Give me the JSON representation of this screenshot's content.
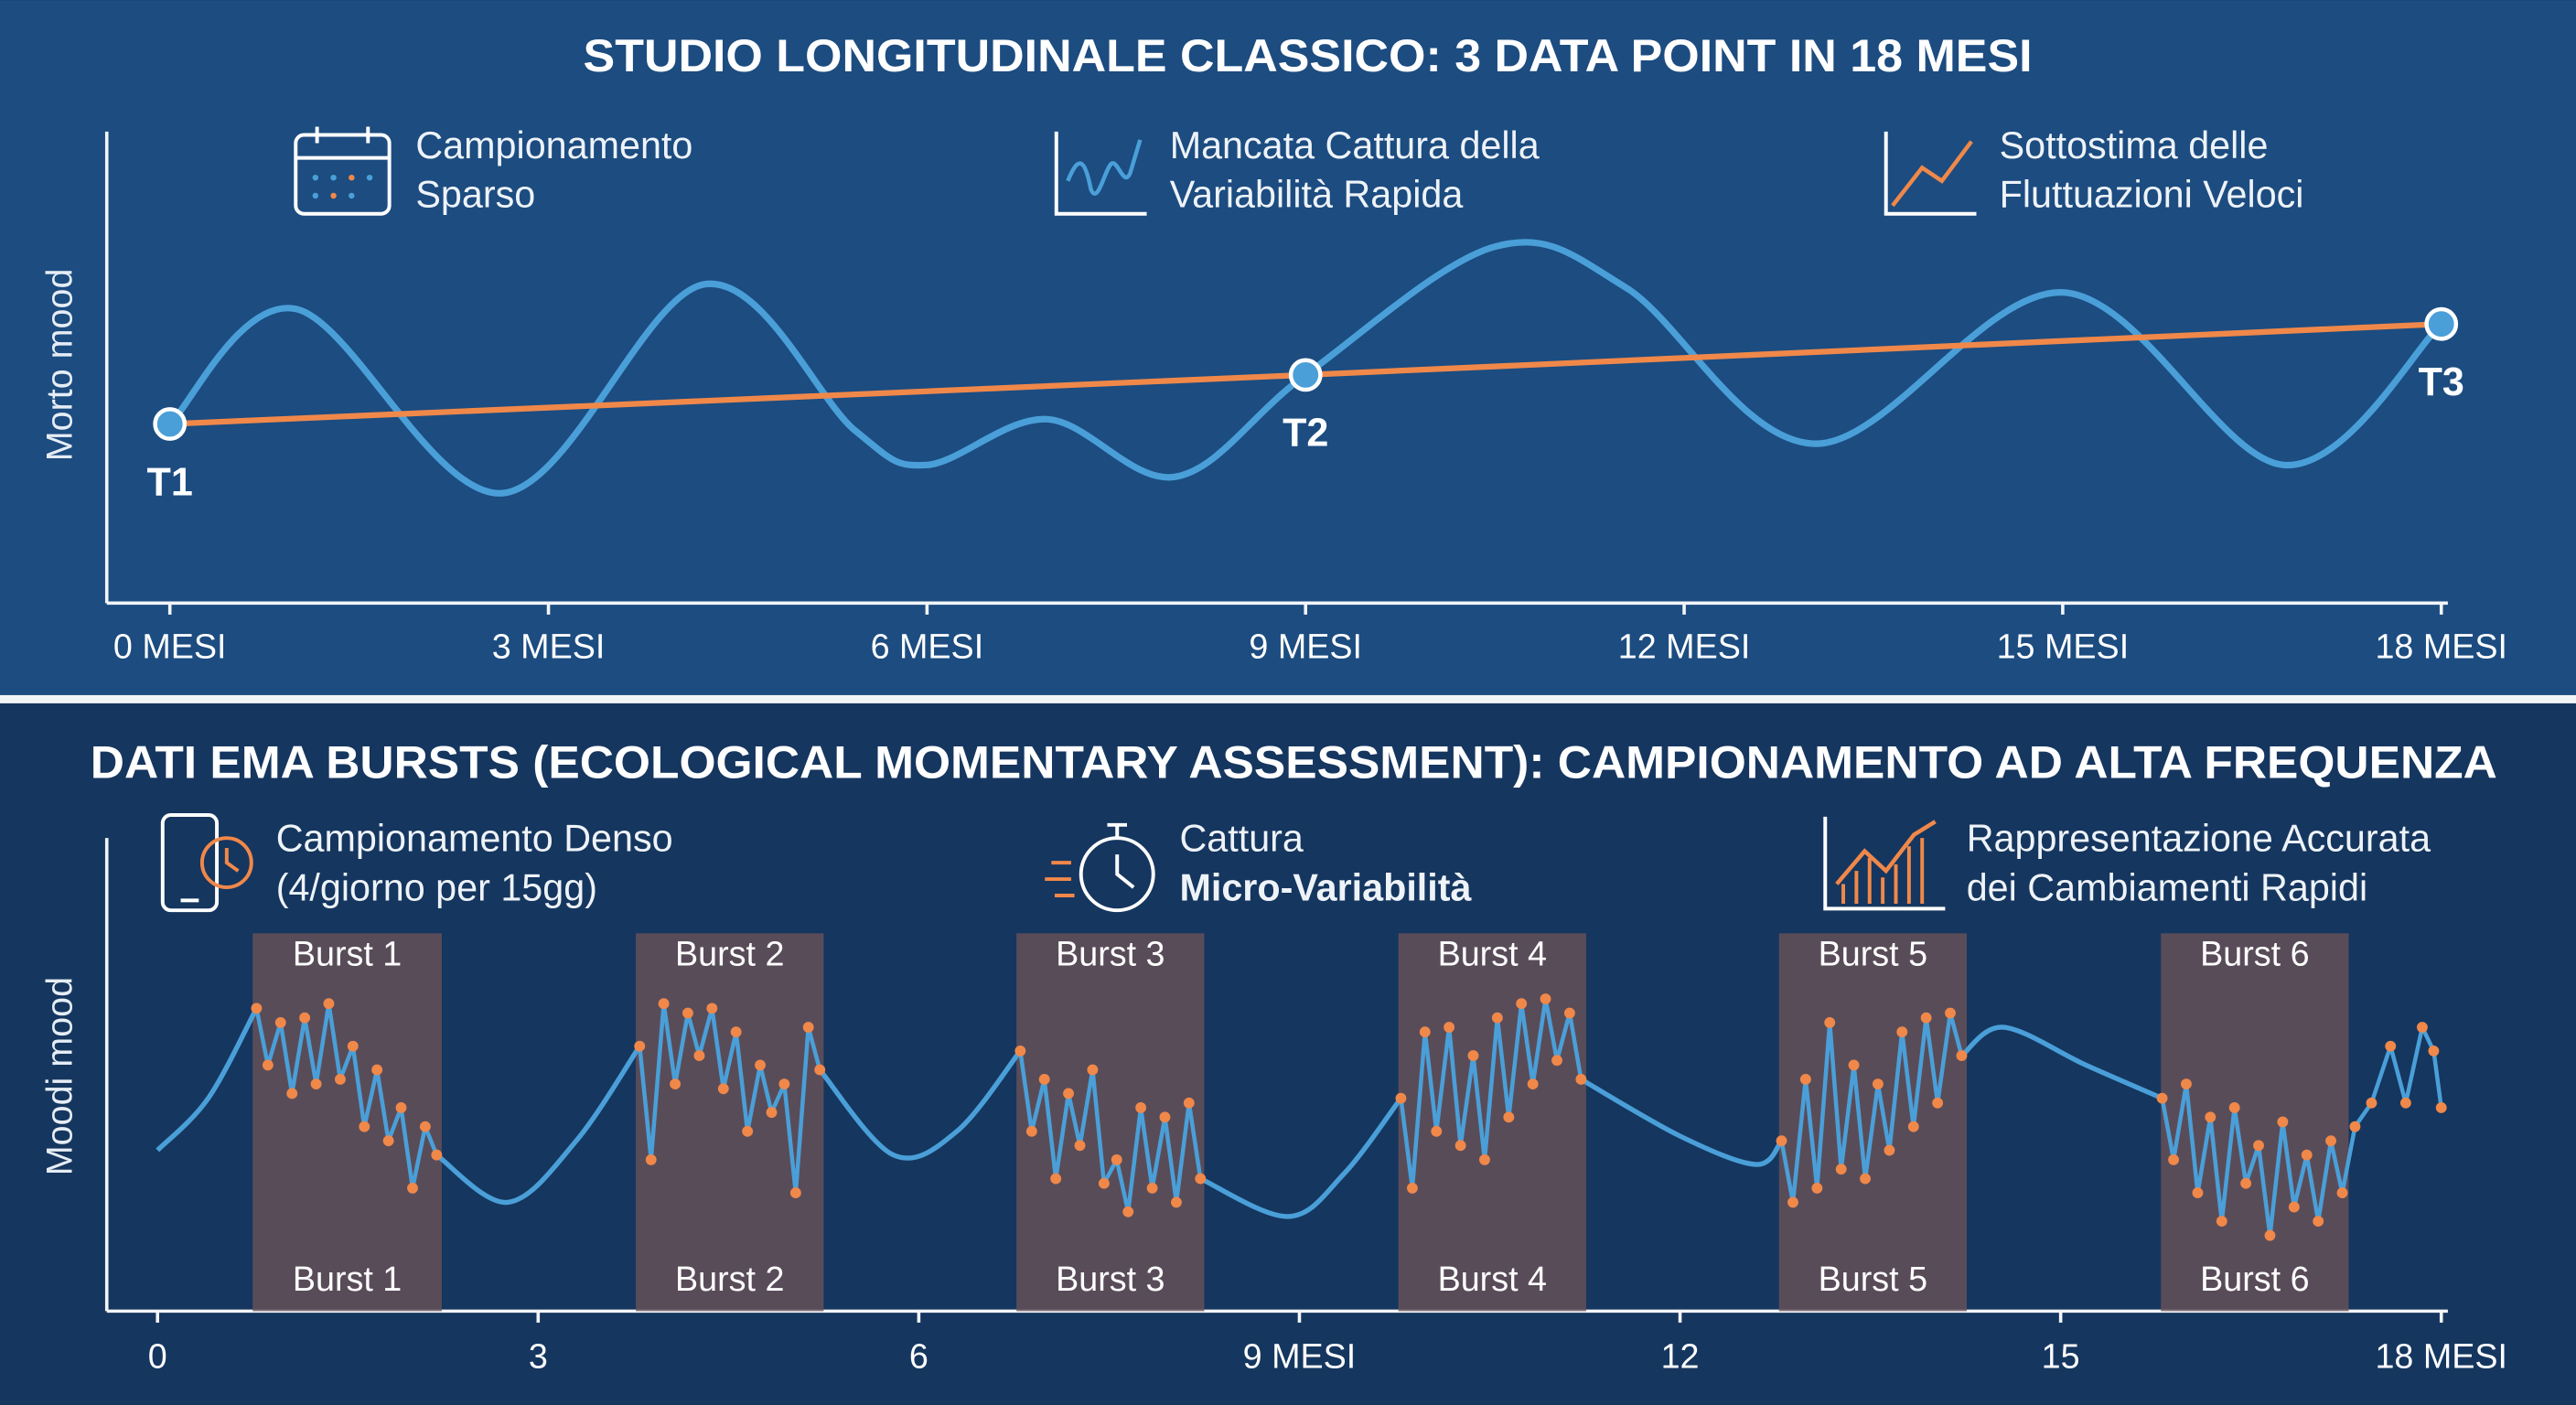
{
  "chart_data": [
    {
      "type": "line",
      "title": "STUDIO LONGITUDINALE CLASSICO: 3 DATA POINT IN 18 MESI",
      "ylabel": "Morto mood",
      "features": [
        {
          "lines": [
            "Campionamento",
            "Sparso"
          ]
        },
        {
          "lines": [
            "Mancata Cattura della",
            "Variabilità Rapida"
          ]
        },
        {
          "lines": [
            "Sottostima delle",
            "Fluttuazioni Veloci"
          ]
        }
      ],
      "xlim": [
        -0.5,
        18
      ],
      "ylim": [
        0,
        10
      ],
      "xticks": [
        {
          "value": 0,
          "label": "0 MESI"
        },
        {
          "value": 3,
          "label": "3 MESI"
        },
        {
          "value": 6,
          "label": "6 MESI"
        },
        {
          "value": 9,
          "label": "9 MESI"
        },
        {
          "value": 12,
          "label": "12 MESI"
        },
        {
          "value": 15,
          "label": "15 MESI"
        },
        {
          "value": 18,
          "label": "18 MESI"
        }
      ],
      "series": [
        {
          "color": "#4a9fd8",
          "x": [
            0,
            1.0,
            2.63,
            4.23,
            5.43,
            6.0,
            6.95,
            7.97,
            9,
            10.5,
            11.54,
            13.04,
            15.0,
            16.75,
            18
          ],
          "values": [
            3.8,
            6.24,
            2.33,
            6.76,
            3.66,
            2.93,
            3.9,
            2.68,
            4.84,
            7.56,
            6.69,
            3.38,
            6.59,
            2.93,
            5.92
          ]
        }
      ],
      "trend": {
        "color": "#f0884a",
        "x": [
          0,
          9,
          18
        ],
        "values": [
          3.8,
          4.84,
          5.92
        ],
        "labels": [
          "T1",
          "T2",
          "T3"
        ]
      }
    },
    {
      "type": "ema",
      "title": "DATI EMA BURSTS (ECOLOGICAL MOMENTARY ASSESSMENT): CAMPIONAMENTO AD ALTA FREQUENZA",
      "ylabel": "Moodi mood",
      "features": [
        {
          "lines": [
            "Campionamento Denso",
            "(4/giorno per 15gg)"
          ]
        },
        {
          "lines": [
            "Cattura",
            "Micro-Variabilità"
          ]
        },
        {
          "lines": [
            "Rappresentazione Accurata",
            "dei Cambiamenti Rapidi"
          ]
        }
      ],
      "xlim": [
        -0.4,
        18
      ],
      "ylim": [
        0,
        10
      ],
      "xticks": [
        0,
        3,
        6,
        {
          "value": 9,
          "label": "9 MESI"
        },
        12,
        15,
        {
          "value": 18,
          "label": "18 MESI"
        }
      ],
      "line": {
        "color": "#4a9fd8",
        "x": [
          0,
          0.4,
          0.78,
          null,
          2.2,
          2.76,
          3.3,
          3.8,
          null,
          5.22,
          5.8,
          6.3,
          6.8,
          null,
          8.22,
          8.91,
          9.35,
          9.8,
          null,
          11.22,
          12.0,
          12.6,
          12.8,
          null,
          14.22,
          14.55,
          15.2,
          15.8
        ],
        "values": [
          3.4,
          4.5,
          6.4,
          null,
          3.3,
          2.3,
          3.6,
          5.6,
          null,
          5.1,
          3.3,
          3.8,
          5.5,
          null,
          2.8,
          2.0,
          2.9,
          4.5,
          null,
          4.9,
          3.7,
          3.1,
          3.6,
          null,
          5.4,
          6.0,
          5.2,
          4.5
        ]
      },
      "dot_color": "#f0884a",
      "bursts": [
        {
          "label": "Burst 1",
          "start": 0.75,
          "end": 2.24,
          "x": [
            0.78,
            0.87,
            0.97,
            1.06,
            1.16,
            1.25,
            1.35,
            1.44,
            1.54,
            1.63,
            1.73,
            1.82,
            1.92,
            2.01,
            2.11,
            2.2
          ],
          "values": [
            6.4,
            5.2,
            6.1,
            4.6,
            6.2,
            4.8,
            6.5,
            4.9,
            5.6,
            3.9,
            5.1,
            3.6,
            4.3,
            2.6,
            3.9,
            3.3
          ]
        },
        {
          "label": "Burst 2",
          "start": 3.77,
          "end": 5.25,
          "x": [
            3.8,
            3.89,
            3.99,
            4.08,
            4.18,
            4.27,
            4.37,
            4.46,
            4.56,
            4.65,
            4.75,
            4.84,
            4.94,
            5.03,
            5.13,
            5.22
          ],
          "values": [
            5.6,
            3.2,
            6.5,
            4.8,
            6.3,
            5.4,
            6.4,
            4.7,
            5.9,
            3.8,
            5.2,
            4.2,
            4.8,
            2.5,
            6.0,
            5.1
          ]
        },
        {
          "label": "Burst 3",
          "start": 6.77,
          "end": 8.25,
          "x": [
            6.8,
            6.89,
            6.99,
            7.08,
            7.18,
            7.27,
            7.37,
            7.46,
            7.56,
            7.65,
            7.75,
            7.84,
            7.94,
            8.03,
            8.13,
            8.22
          ],
          "values": [
            5.5,
            3.8,
            4.9,
            2.8,
            4.6,
            3.5,
            5.1,
            2.7,
            3.2,
            2.1,
            4.3,
            2.6,
            4.1,
            2.3,
            4.4,
            2.8
          ]
        },
        {
          "label": "Burst 4",
          "start": 9.78,
          "end": 11.26,
          "x": [
            9.8,
            9.89,
            9.99,
            10.08,
            10.18,
            10.27,
            10.37,
            10.46,
            10.56,
            10.65,
            10.75,
            10.84,
            10.94,
            11.03,
            11.13,
            11.22
          ],
          "values": [
            4.5,
            2.6,
            5.9,
            3.8,
            6.0,
            3.5,
            5.4,
            3.2,
            6.2,
            4.1,
            6.5,
            4.8,
            6.6,
            5.3,
            6.3,
            4.9
          ]
        },
        {
          "label": "Burst 5",
          "start": 12.78,
          "end": 14.26,
          "x": [
            12.8,
            12.89,
            12.99,
            13.08,
            13.18,
            13.27,
            13.37,
            13.46,
            13.56,
            13.65,
            13.75,
            13.84,
            13.94,
            14.03,
            14.13,
            14.22
          ],
          "values": [
            3.6,
            2.3,
            4.9,
            2.6,
            6.1,
            3.0,
            5.2,
            2.8,
            4.8,
            3.4,
            5.9,
            3.9,
            6.2,
            4.4,
            6.3,
            5.4
          ]
        },
        {
          "label": "Burst 6",
          "start": 15.79,
          "end": 17.27,
          "x": [
            15.8,
            15.89,
            15.99,
            16.08,
            16.18,
            16.27,
            16.37,
            16.46,
            16.56,
            16.65,
            16.75,
            16.84,
            16.94,
            17.03,
            17.13,
            17.22,
            17.32,
            17.45,
            17.6,
            17.72,
            17.85,
            17.94,
            18.0
          ],
          "values": [
            4.5,
            3.2,
            4.8,
            2.5,
            4.1,
            1.9,
            4.3,
            2.7,
            3.5,
            1.6,
            4.0,
            2.2,
            3.3,
            1.9,
            3.6,
            2.5,
            3.9,
            4.4,
            5.6,
            4.4,
            6.0,
            5.5,
            4.3
          ]
        }
      ]
    }
  ]
}
